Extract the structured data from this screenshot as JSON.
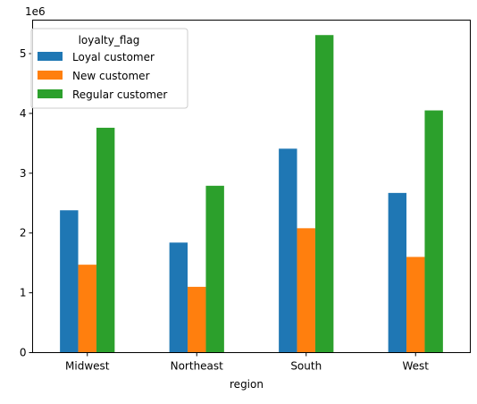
{
  "chart_data": {
    "type": "bar",
    "title": "",
    "xlabel": "region",
    "ylabel": "",
    "y_offset_label": "1e6",
    "categories": [
      "Midwest",
      "Northeast",
      "South",
      "West"
    ],
    "ylim": [
      0,
      5.56
    ],
    "yticks": [
      0,
      1,
      2,
      3,
      4,
      5
    ],
    "grid": false,
    "legend": {
      "title": "loyalty_flag",
      "placement": "top-left"
    },
    "series": [
      {
        "name": "Loyal customer",
        "color": "#1f77b4",
        "values": [
          2.38,
          1.84,
          3.41,
          2.67
        ]
      },
      {
        "name": "New customer",
        "color": "#ff7f0e",
        "values": [
          1.47,
          1.1,
          2.08,
          1.6
        ]
      },
      {
        "name": "Regular customer",
        "color": "#2ca02c",
        "values": [
          3.76,
          2.79,
          5.31,
          4.05
        ]
      }
    ]
  }
}
